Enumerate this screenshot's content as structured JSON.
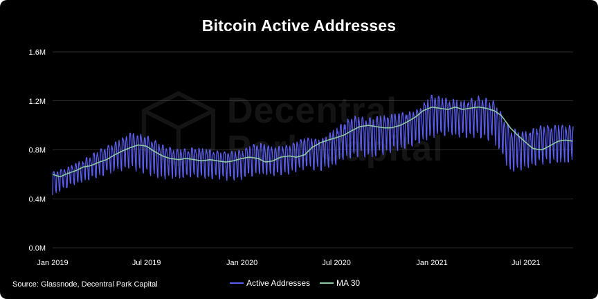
{
  "title": "Bitcoin Active Addresses",
  "source": "Source: Glassnode, Decentral Park Capital",
  "watermark": {
    "line1": "Decentral",
    "line2": "Park Capital"
  },
  "colors": {
    "background": "#000000",
    "active": "#5a5ef0",
    "ma": "#8ec9a6",
    "grid": "#555555",
    "text": "#ffffff"
  },
  "chart_data": {
    "type": "line",
    "title": "Bitcoin Active Addresses",
    "xlabel": "",
    "ylabel": "",
    "ylim": [
      0,
      1600000
    ],
    "yticks": [
      "0.0M",
      "0.4M",
      "0.8M",
      "1.2M",
      "1.6M"
    ],
    "xticks": [
      "Jan 2019",
      "Jul 2019",
      "Jan 2020",
      "Jul 2020",
      "Jan 2021",
      "Jul 2021"
    ],
    "x_range": [
      "2019-01-01",
      "2021-09-30"
    ],
    "grid": true,
    "legend_position": "bottom",
    "series": [
      {
        "name": "Active Addresses",
        "color": "#5a5ef0",
        "style": "daily line with strong weekly oscillation",
        "weekly_peaks": [
          [
            "2019-01-01",
            0.62
          ],
          [
            "2019-02-01",
            0.66
          ],
          [
            "2019-03-01",
            0.72
          ],
          [
            "2019-04-01",
            0.8
          ],
          [
            "2019-05-01",
            0.86
          ],
          [
            "2019-06-01",
            0.94
          ],
          [
            "2019-07-01",
            0.92
          ],
          [
            "2019-08-01",
            0.84
          ],
          [
            "2019-09-01",
            0.8
          ],
          [
            "2019-10-01",
            0.82
          ],
          [
            "2019-11-01",
            0.8
          ],
          [
            "2019-12-01",
            0.78
          ],
          [
            "2020-01-01",
            0.8
          ],
          [
            "2020-02-01",
            0.86
          ],
          [
            "2020-03-01",
            0.82
          ],
          [
            "2020-04-01",
            0.84
          ],
          [
            "2020-05-01",
            0.9
          ],
          [
            "2020-06-01",
            0.88
          ],
          [
            "2020-07-01",
            0.98
          ],
          [
            "2020-08-01",
            1.08
          ],
          [
            "2020-09-01",
            1.06
          ],
          [
            "2020-10-01",
            1.08
          ],
          [
            "2020-11-01",
            1.1
          ],
          [
            "2020-12-01",
            1.12
          ],
          [
            "2021-01-01",
            1.25
          ],
          [
            "2021-02-01",
            1.22
          ],
          [
            "2021-03-01",
            1.2
          ],
          [
            "2021-04-01",
            1.24
          ],
          [
            "2021-05-01",
            1.2
          ],
          [
            "2021-06-01",
            0.98
          ],
          [
            "2021-07-01",
            0.95
          ],
          [
            "2021-08-01",
            1.0
          ],
          [
            "2021-09-01",
            1.0
          ],
          [
            "2021-09-30",
            1.0
          ]
        ],
        "weekly_troughs": [
          [
            "2019-01-01",
            0.42
          ],
          [
            "2019-02-01",
            0.5
          ],
          [
            "2019-03-01",
            0.54
          ],
          [
            "2019-04-01",
            0.58
          ],
          [
            "2019-05-01",
            0.62
          ],
          [
            "2019-06-01",
            0.64
          ],
          [
            "2019-07-01",
            0.6
          ],
          [
            "2019-08-01",
            0.56
          ],
          [
            "2019-09-01",
            0.57
          ],
          [
            "2019-10-01",
            0.58
          ],
          [
            "2019-11-01",
            0.56
          ],
          [
            "2019-12-01",
            0.55
          ],
          [
            "2020-01-01",
            0.55
          ],
          [
            "2020-02-01",
            0.6
          ],
          [
            "2020-03-01",
            0.58
          ],
          [
            "2020-04-01",
            0.6
          ],
          [
            "2020-05-01",
            0.64
          ],
          [
            "2020-06-01",
            0.63
          ],
          [
            "2020-07-01",
            0.68
          ],
          [
            "2020-08-01",
            0.74
          ],
          [
            "2020-09-01",
            0.74
          ],
          [
            "2020-10-01",
            0.76
          ],
          [
            "2020-11-01",
            0.8
          ],
          [
            "2020-12-01",
            0.84
          ],
          [
            "2021-01-01",
            0.9
          ],
          [
            "2021-02-01",
            0.92
          ],
          [
            "2021-03-01",
            0.9
          ],
          [
            "2021-04-01",
            0.9
          ],
          [
            "2021-05-01",
            0.86
          ],
          [
            "2021-06-01",
            0.62
          ],
          [
            "2021-07-01",
            0.64
          ],
          [
            "2021-08-01",
            0.68
          ],
          [
            "2021-09-01",
            0.7
          ],
          [
            "2021-09-30",
            0.7
          ]
        ]
      },
      {
        "name": "MA 30",
        "color": "#8ec9a6",
        "points": [
          [
            "2019-01-01",
            0.6
          ],
          [
            "2019-01-15",
            0.58
          ],
          [
            "2019-02-01",
            0.61
          ],
          [
            "2019-02-15",
            0.63
          ],
          [
            "2019-03-01",
            0.66
          ],
          [
            "2019-03-15",
            0.67
          ],
          [
            "2019-04-01",
            0.7
          ],
          [
            "2019-04-15",
            0.72
          ],
          [
            "2019-05-01",
            0.76
          ],
          [
            "2019-05-15",
            0.79
          ],
          [
            "2019-06-01",
            0.82
          ],
          [
            "2019-06-15",
            0.84
          ],
          [
            "2019-07-01",
            0.83
          ],
          [
            "2019-07-15",
            0.79
          ],
          [
            "2019-08-01",
            0.75
          ],
          [
            "2019-08-15",
            0.73
          ],
          [
            "2019-09-01",
            0.72
          ],
          [
            "2019-09-15",
            0.73
          ],
          [
            "2019-10-01",
            0.72
          ],
          [
            "2019-10-15",
            0.71
          ],
          [
            "2019-11-01",
            0.72
          ],
          [
            "2019-11-15",
            0.71
          ],
          [
            "2019-12-01",
            0.7
          ],
          [
            "2019-12-15",
            0.71
          ],
          [
            "2020-01-01",
            0.73
          ],
          [
            "2020-01-15",
            0.74
          ],
          [
            "2020-02-01",
            0.73
          ],
          [
            "2020-02-15",
            0.7
          ],
          [
            "2020-03-01",
            0.71
          ],
          [
            "2020-03-15",
            0.74
          ],
          [
            "2020-04-01",
            0.75
          ],
          [
            "2020-04-15",
            0.74
          ],
          [
            "2020-05-01",
            0.76
          ],
          [
            "2020-05-15",
            0.82
          ],
          [
            "2020-06-01",
            0.86
          ],
          [
            "2020-06-15",
            0.88
          ],
          [
            "2020-07-01",
            0.9
          ],
          [
            "2020-07-15",
            0.92
          ],
          [
            "2020-08-01",
            0.96
          ],
          [
            "2020-08-15",
            0.99
          ],
          [
            "2020-09-01",
            1.0
          ],
          [
            "2020-09-15",
            0.99
          ],
          [
            "2020-10-01",
            0.98
          ],
          [
            "2020-10-15",
            0.98
          ],
          [
            "2020-11-01",
            1.0
          ],
          [
            "2020-11-15",
            1.03
          ],
          [
            "2020-12-01",
            1.07
          ],
          [
            "2020-12-15",
            1.12
          ],
          [
            "2021-01-01",
            1.15
          ],
          [
            "2021-01-15",
            1.14
          ],
          [
            "2021-02-01",
            1.13
          ],
          [
            "2021-02-15",
            1.15
          ],
          [
            "2021-03-01",
            1.13
          ],
          [
            "2021-03-15",
            1.14
          ],
          [
            "2021-04-01",
            1.15
          ],
          [
            "2021-04-15",
            1.14
          ],
          [
            "2021-05-01",
            1.12
          ],
          [
            "2021-05-15",
            1.08
          ],
          [
            "2021-06-01",
            0.98
          ],
          [
            "2021-06-15",
            0.92
          ],
          [
            "2021-07-01",
            0.86
          ],
          [
            "2021-07-15",
            0.81
          ],
          [
            "2021-08-01",
            0.8
          ],
          [
            "2021-08-15",
            0.83
          ],
          [
            "2021-09-01",
            0.87
          ],
          [
            "2021-09-15",
            0.88
          ],
          [
            "2021-09-30",
            0.87
          ]
        ]
      }
    ],
    "value_unit": "millions"
  }
}
